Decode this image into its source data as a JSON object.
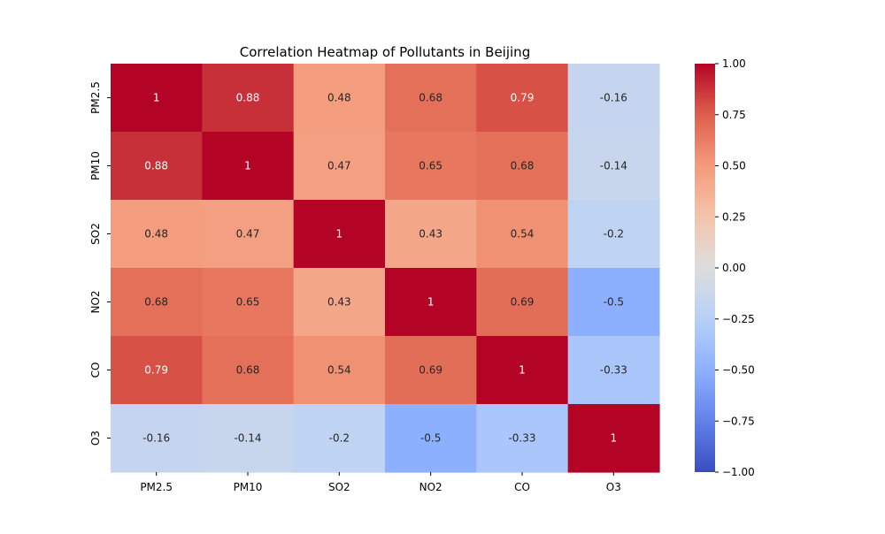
{
  "chart_data": {
    "type": "heatmap",
    "title": "Correlation Heatmap of Pollutants in Beijing",
    "x_categories": [
      "PM2.5",
      "PM10",
      "SO2",
      "NO2",
      "CO",
      "O3"
    ],
    "y_categories": [
      "PM2.5",
      "PM10",
      "SO2",
      "NO2",
      "CO",
      "O3"
    ],
    "values": [
      [
        1,
        0.88,
        0.48,
        0.68,
        0.79,
        -0.16
      ],
      [
        0.88,
        1,
        0.47,
        0.65,
        0.68,
        -0.14
      ],
      [
        0.48,
        0.47,
        1,
        0.43,
        0.54,
        -0.2
      ],
      [
        0.68,
        0.65,
        0.43,
        1,
        0.69,
        -0.5
      ],
      [
        0.79,
        0.68,
        0.54,
        0.69,
        1,
        -0.33
      ],
      [
        -0.16,
        -0.14,
        -0.2,
        -0.5,
        -0.33,
        1
      ]
    ],
    "colormap": "coolwarm",
    "vmin": -1,
    "vmax": 1,
    "colorbar_ticks": [
      "−1.00",
      "−0.75",
      "−0.50",
      "−0.25",
      "0.00",
      "0.25",
      "0.50",
      "0.75",
      "1.00"
    ],
    "annotated": true,
    "grid": false
  }
}
